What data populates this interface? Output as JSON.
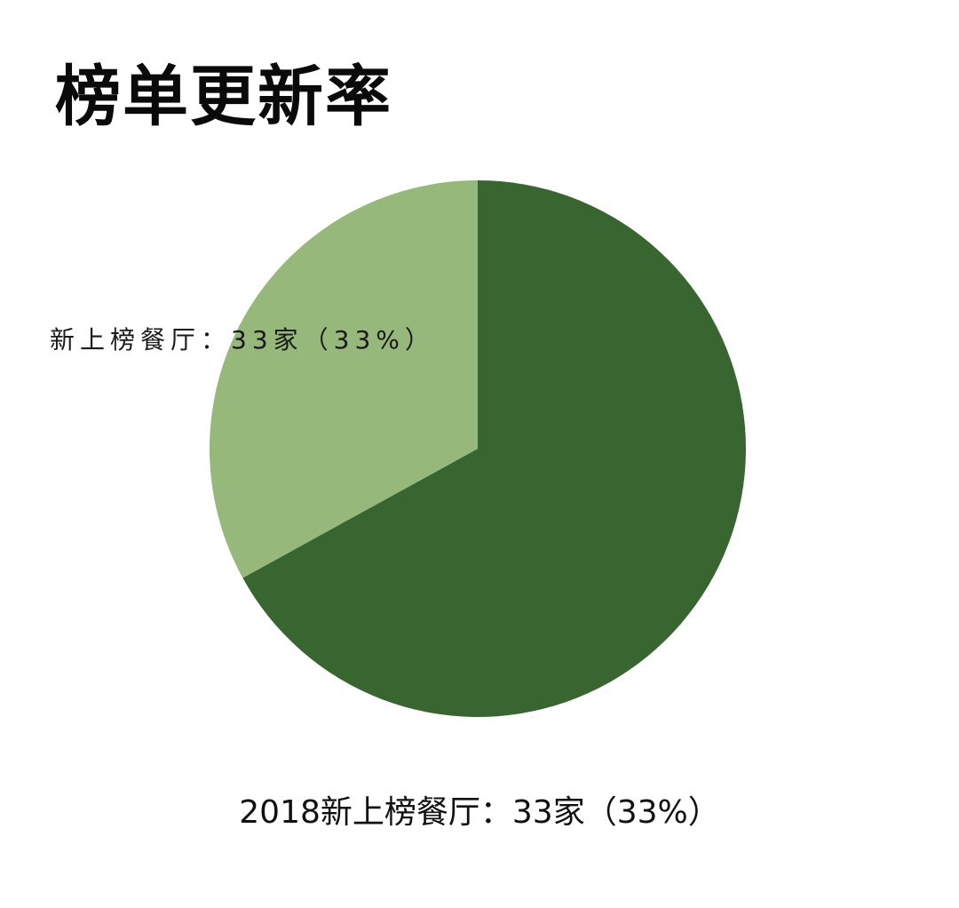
{
  "chart_data": {
    "type": "pie",
    "title": "榜单更新率",
    "slices": [
      {
        "value": 67,
        "color": "#386530"
      },
      {
        "label": "新上榜餐厅：33家（33%）",
        "value": 33,
        "color": "#96b87a"
      }
    ],
    "footnote": "2018新上榜餐厅：33家（33%）"
  }
}
